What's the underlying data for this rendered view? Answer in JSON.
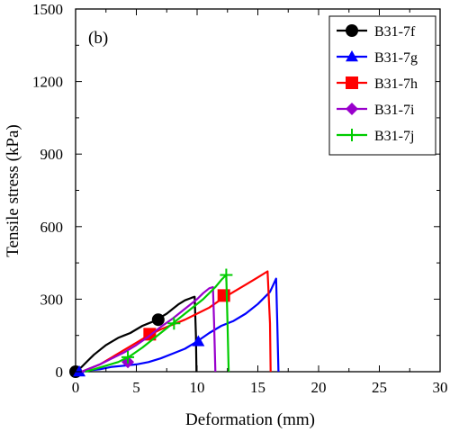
{
  "chart_data": {
    "type": "line",
    "title": "",
    "panel_label": "(b)",
    "xlabel": "Deformation (mm)",
    "ylabel": "Tensile stress (kPa)",
    "xlim": [
      0,
      30
    ],
    "ylim": [
      0,
      1500
    ],
    "xticks": [
      "0",
      "5",
      "10",
      "15",
      "20",
      "25",
      "30"
    ],
    "yticks": [
      "0",
      "300",
      "600",
      "900",
      "1200",
      "1500"
    ],
    "grid": false,
    "legend_position": "top-right",
    "series": [
      {
        "name": "B31-7f",
        "color": "#000000",
        "marker": "circle",
        "x": [
          0,
          0.5,
          1,
          1.5,
          2,
          2.5,
          3,
          3.5,
          4,
          4.5,
          5,
          5.5,
          6,
          6.5,
          7,
          7.5,
          8,
          8.5,
          9,
          9.5,
          9.8,
          9.9,
          9.95
        ],
        "y": [
          0,
          20,
          45,
          70,
          90,
          110,
          125,
          140,
          150,
          160,
          175,
          190,
          200,
          210,
          225,
          240,
          260,
          280,
          295,
          305,
          310,
          150,
          0
        ],
        "marker_points": [
          [
            0,
            0
          ],
          [
            6.8,
            215
          ]
        ]
      },
      {
        "name": "B31-7g",
        "color": "#0000ff",
        "marker": "triangle",
        "x": [
          0.5,
          1,
          2,
          3,
          4,
          5,
          6,
          7,
          8,
          9,
          10,
          11,
          12,
          13,
          14,
          15,
          16,
          16.5,
          16.6,
          16.7
        ],
        "y": [
          0,
          5,
          10,
          20,
          25,
          30,
          40,
          55,
          75,
          95,
          125,
          160,
          190,
          210,
          240,
          280,
          330,
          385,
          200,
          0
        ],
        "marker_points": [
          [
            0.3,
            0
          ],
          [
            10.1,
            125
          ]
        ]
      },
      {
        "name": "B31-7h",
        "color": "#ff0000",
        "marker": "square",
        "x": [
          0.5,
          1,
          2,
          3,
          4,
          5,
          6,
          7,
          8,
          9,
          10,
          11,
          12,
          13,
          14,
          15,
          15.8,
          16,
          16.05
        ],
        "y": [
          0,
          10,
          30,
          60,
          90,
          120,
          150,
          175,
          195,
          215,
          240,
          265,
          300,
          330,
          360,
          390,
          415,
          200,
          0
        ],
        "marker_points": [
          [
            6.1,
            155
          ],
          [
            12.2,
            315
          ]
        ]
      },
      {
        "name": "B31-7i",
        "color": "#9900cc",
        "marker": "diamond",
        "x": [
          0.5,
          1,
          2,
          3,
          4,
          5,
          6,
          7,
          8,
          9,
          10,
          10.5,
          11,
          11.3,
          11.4,
          11.5
        ],
        "y": [
          0,
          10,
          30,
          55,
          80,
          110,
          145,
          185,
          220,
          260,
          300,
          325,
          345,
          350,
          200,
          0
        ],
        "marker_points": [
          [
            4.3,
            40
          ]
        ]
      },
      {
        "name": "B31-7j",
        "color": "#00cc00",
        "marker": "plus",
        "x": [
          0.8,
          1.5,
          2.5,
          3.5,
          4.5,
          5.5,
          6.5,
          7.5,
          8.5,
          9.5,
          10.5,
          11.5,
          12,
          12.4,
          12.5,
          12.6
        ],
        "y": [
          0,
          10,
          25,
          40,
          65,
          100,
          140,
          180,
          220,
          260,
          300,
          350,
          380,
          400,
          200,
          0
        ],
        "marker_points": [
          [
            4.3,
            60
          ],
          [
            8.1,
            200
          ],
          [
            12.4,
            400
          ]
        ]
      }
    ]
  }
}
